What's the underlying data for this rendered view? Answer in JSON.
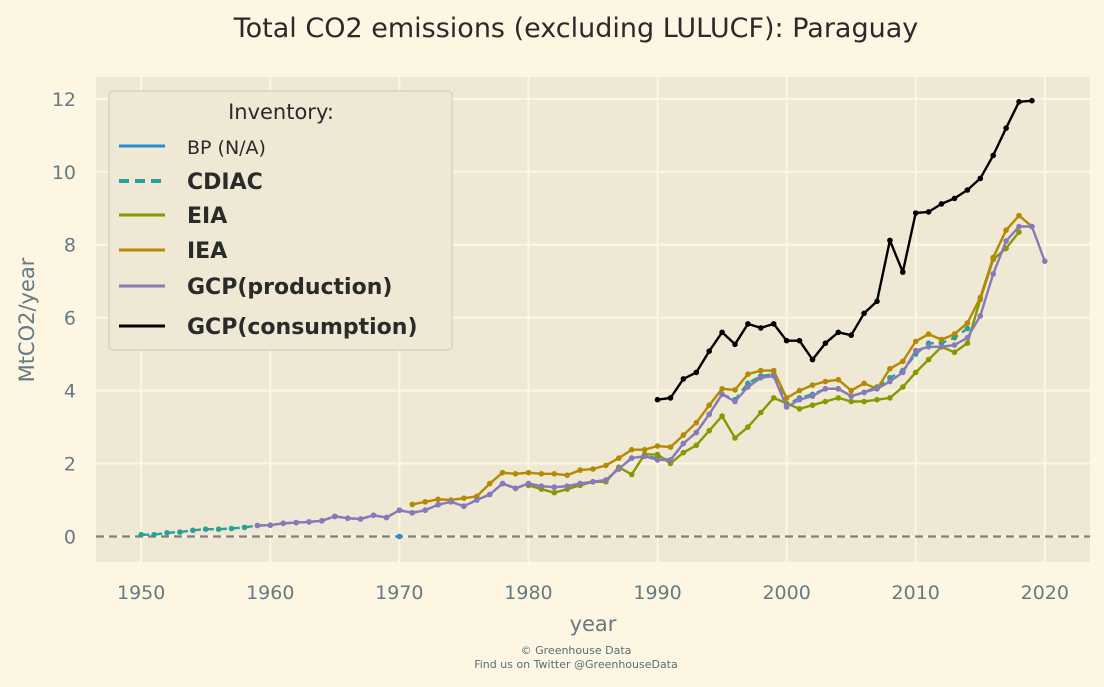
{
  "chart_data": {
    "type": "line",
    "title": "Total CO2 emissions (excluding LULUCF): Paraguay",
    "xlabel": "year",
    "ylabel": "MtCO2/year",
    "xlim": [
      1946.5,
      2023.5
    ],
    "ylim": [
      -0.7,
      12.6
    ],
    "xticks": [
      1950,
      1960,
      1970,
      1980,
      1990,
      2000,
      2010,
      2020
    ],
    "yticks": [
      0,
      2,
      4,
      6,
      8,
      10,
      12
    ],
    "grid": true,
    "legend_position": "top-left",
    "legend_title": "Inventory:",
    "zero_line": {
      "y": 0,
      "style": "dashed",
      "color": "#808080"
    },
    "series": [
      {
        "name": "BP (N/A)",
        "color": "#268bd2",
        "style": "solid",
        "x": [
          1970
        ],
        "y": [
          0.0
        ]
      },
      {
        "name": "CDIAC",
        "color": "#2aa198",
        "style": "dashed",
        "x": [
          1950,
          1951,
          1952,
          1953,
          1954,
          1955,
          1956,
          1957,
          1958,
          1959,
          1960,
          1961,
          1962,
          1963,
          1964,
          1965,
          1966,
          1967,
          1968,
          1969,
          1970,
          1971,
          1972,
          1973,
          1974,
          1975,
          1976,
          1977,
          1978,
          1979,
          1980,
          1981,
          1982,
          1983,
          1984,
          1985,
          1986,
          1987,
          1988,
          1989,
          1990,
          1991,
          1992,
          1993,
          1994,
          1995,
          1996,
          1997,
          1998,
          1999,
          2000,
          2001,
          2002,
          2003,
          2004,
          2005,
          2006,
          2007,
          2008,
          2009,
          2010,
          2011,
          2012,
          2013,
          2014
        ],
        "y": [
          0.05,
          0.05,
          0.1,
          0.12,
          0.17,
          0.2,
          0.2,
          0.22,
          0.25,
          0.3,
          0.31,
          0.36,
          0.38,
          0.4,
          0.43,
          0.55,
          0.5,
          0.48,
          0.58,
          0.52,
          0.72,
          0.65,
          0.72,
          0.87,
          0.95,
          0.83,
          1.0,
          1.15,
          1.45,
          1.32,
          1.45,
          1.38,
          1.35,
          1.38,
          1.45,
          1.5,
          1.55,
          1.85,
          2.15,
          2.2,
          2.15,
          2.1,
          2.55,
          2.85,
          3.35,
          3.9,
          3.75,
          4.2,
          4.4,
          4.45,
          3.6,
          3.8,
          3.9,
          4.05,
          4.05,
          3.85,
          3.95,
          4.1,
          4.35,
          4.55,
          5.0,
          5.3,
          5.3,
          5.45,
          5.7
        ]
      },
      {
        "name": "EIA",
        "color": "#859900",
        "style": "solid",
        "x": [
          1980,
          1981,
          1982,
          1983,
          1984,
          1985,
          1986,
          1987,
          1988,
          1989,
          1990,
          1991,
          1992,
          1993,
          1994,
          1995,
          1996,
          1997,
          1998,
          1999,
          2000,
          2001,
          2002,
          2003,
          2004,
          2005,
          2006,
          2007,
          2008,
          2009,
          2010,
          2011,
          2012,
          2013,
          2014,
          2015,
          2016,
          2017,
          2018
        ],
        "y": [
          1.4,
          1.3,
          1.2,
          1.3,
          1.4,
          1.5,
          1.5,
          1.9,
          1.7,
          2.25,
          2.25,
          2.0,
          2.3,
          2.5,
          2.9,
          3.3,
          2.7,
          3.0,
          3.4,
          3.8,
          3.65,
          3.5,
          3.6,
          3.7,
          3.8,
          3.7,
          3.7,
          3.75,
          3.8,
          4.1,
          4.5,
          4.85,
          5.2,
          5.05,
          5.3,
          6.5,
          7.6,
          7.9,
          8.35
        ]
      },
      {
        "name": "IEA",
        "color": "#b58900",
        "style": "solid",
        "x": [
          1971,
          1972,
          1973,
          1974,
          1975,
          1976,
          1977,
          1978,
          1979,
          1980,
          1981,
          1982,
          1983,
          1984,
          1985,
          1986,
          1987,
          1988,
          1989,
          1990,
          1991,
          1992,
          1993,
          1994,
          1995,
          1996,
          1997,
          1998,
          1999,
          2000,
          2001,
          2002,
          2003,
          2004,
          2005,
          2006,
          2007,
          2008,
          2009,
          2010,
          2011,
          2012,
          2013,
          2014,
          2015,
          2016,
          2017,
          2018,
          2019
        ],
        "y": [
          0.88,
          0.95,
          1.02,
          1.0,
          1.05,
          1.1,
          1.45,
          1.75,
          1.72,
          1.75,
          1.72,
          1.72,
          1.68,
          1.82,
          1.85,
          1.95,
          2.15,
          2.38,
          2.38,
          2.48,
          2.45,
          2.78,
          3.12,
          3.6,
          4.05,
          4.02,
          4.45,
          4.55,
          4.55,
          3.8,
          4.0,
          4.15,
          4.25,
          4.3,
          4.0,
          4.2,
          4.05,
          4.6,
          4.8,
          5.35,
          5.55,
          5.4,
          5.55,
          5.85,
          6.55,
          7.65,
          8.4,
          8.8,
          8.5
        ]
      },
      {
        "name": "GCP(production)",
        "color": "#8a79b8",
        "style": "solid",
        "x": [
          1959,
          1960,
          1961,
          1962,
          1963,
          1964,
          1965,
          1966,
          1967,
          1968,
          1969,
          1970,
          1971,
          1972,
          1973,
          1974,
          1975,
          1976,
          1977,
          1978,
          1979,
          1980,
          1981,
          1982,
          1983,
          1984,
          1985,
          1986,
          1987,
          1988,
          1989,
          1990,
          1991,
          1992,
          1993,
          1994,
          1995,
          1996,
          1997,
          1998,
          1999,
          2000,
          2001,
          2002,
          2003,
          2004,
          2005,
          2006,
          2007,
          2008,
          2009,
          2010,
          2011,
          2012,
          2013,
          2014,
          2015,
          2016,
          2017,
          2018,
          2019,
          2020
        ],
        "y": [
          0.3,
          0.31,
          0.36,
          0.38,
          0.4,
          0.43,
          0.55,
          0.5,
          0.48,
          0.58,
          0.52,
          0.72,
          0.65,
          0.72,
          0.87,
          0.95,
          0.83,
          1.0,
          1.15,
          1.45,
          1.32,
          1.45,
          1.38,
          1.35,
          1.38,
          1.45,
          1.5,
          1.55,
          1.85,
          2.15,
          2.2,
          2.1,
          2.1,
          2.55,
          2.85,
          3.35,
          3.9,
          3.7,
          4.1,
          4.35,
          4.4,
          3.55,
          3.75,
          3.85,
          4.05,
          4.05,
          3.85,
          3.95,
          4.05,
          4.25,
          4.5,
          5.1,
          5.2,
          5.2,
          5.25,
          5.45,
          6.05,
          7.2,
          8.1,
          8.5,
          8.5,
          7.55
        ]
      },
      {
        "name": "GCP(consumption)",
        "color": "#000000",
        "style": "solid",
        "x": [
          1990,
          1991,
          1992,
          1993,
          1994,
          1995,
          1996,
          1997,
          1998,
          1999,
          2000,
          2001,
          2002,
          2003,
          2004,
          2005,
          2006,
          2007,
          2008,
          2009,
          2010,
          2011,
          2012,
          2013,
          2014,
          2015,
          2016,
          2017,
          2018,
          2019
        ],
        "y": [
          3.75,
          3.8,
          4.32,
          4.5,
          5.08,
          5.6,
          5.27,
          5.83,
          5.72,
          5.83,
          5.37,
          5.37,
          4.85,
          5.3,
          5.6,
          5.52,
          6.12,
          6.45,
          8.12,
          7.25,
          8.87,
          8.9,
          9.12,
          9.27,
          9.5,
          9.82,
          10.45,
          11.2,
          11.92,
          11.95
        ]
      }
    ]
  },
  "legend": {
    "title": "Inventory:",
    "items": [
      {
        "label": "BP (N/A)",
        "color": "#268bd2",
        "style": "solid",
        "weight": "normal"
      },
      {
        "label": "CDIAC",
        "color": "#2aa198",
        "style": "dashed",
        "weight": "bold"
      },
      {
        "label": "EIA",
        "color": "#859900",
        "style": "solid",
        "weight": "bold"
      },
      {
        "label": "IEA",
        "color": "#b58900",
        "style": "solid",
        "weight": "bold"
      },
      {
        "label": "GCP(production)",
        "color": "#8a79b8",
        "style": "solid",
        "weight": "bold"
      },
      {
        "label": "GCP(consumption)",
        "color": "#000000",
        "style": "solid",
        "weight": "bold"
      }
    ]
  },
  "footer": {
    "line1": "© Greenhouse Data",
    "line2": "Find us on Twitter @GreenhouseData"
  },
  "colors": {
    "page_background": "#fdf6e3",
    "plot_background": "#eee8d5",
    "grid": "#fdf6e3",
    "axis_text": "#657b83"
  }
}
